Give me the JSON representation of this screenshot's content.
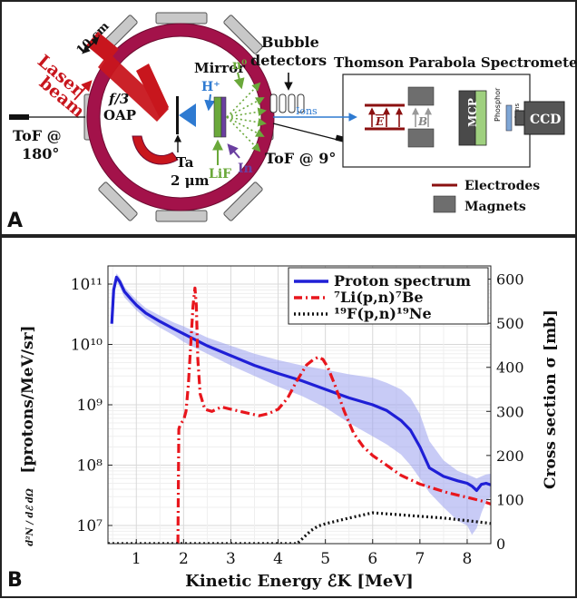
{
  "panel_a": {
    "panel_label": "A",
    "laser_label_1": "Laser",
    "laser_label_2": "beam",
    "beam_size": "10 cm",
    "oap_label_1": "f/3",
    "oap_label_2": "OAP",
    "mirror_label": "Mirror",
    "proton_label": "H⁺",
    "neutron_label": "n⁰",
    "target_label_1": "Ta",
    "target_label_2": "2 μm",
    "lif_label": "LiF",
    "indium_label": "In",
    "bubble_label_1": "Bubble",
    "bubble_label_2": "detectors",
    "tps_title": "Thomson Parabola Spectrometer",
    "ions_label": "Ions",
    "efield_label": "E",
    "bfield_label": "B",
    "mcp_label": "MCP",
    "phosphor_label": "Phosphor",
    "lens_label": "Lens",
    "ccd_label": "CCD",
    "tof180_label_1": "ToF @",
    "tof180_label_2": "180°",
    "tof9_label": "ToF @ 9°",
    "legend_electrodes": "Electrodes",
    "legend_magnets": "Magnets",
    "colors": {
      "chamber": "#a3124a",
      "laser": "#c8161d",
      "flange": "#c8c8c8",
      "magnet": "#6e6e6e",
      "electrode": "#8b1010",
      "mcp": "#4a4a4a",
      "phosphor": "#9fd07f",
      "lens": "#7fa7d6",
      "proton_arrow": "#2e7ad1",
      "neutron": "#6aa83a",
      "indium_arrow": "#6a3fa0"
    }
  },
  "panel_b": {
    "panel_label": "B",
    "chart_data": {
      "type": "line",
      "xlabel": "Kinetic Energy ℰK [MeV]",
      "ylabel_left": "[protons/MeV/sr]",
      "ylabel_left_prefix": "d²N / dℰ dΩ",
      "ylabel_right": "Cross section σ [mb]",
      "xlim": [
        0.4,
        8.5
      ],
      "x_ticks": [
        1,
        2,
        3,
        4,
        5,
        6,
        7,
        8
      ],
      "y_left_scale": "log",
      "y_left_lim": [
        5000000,
        200000000000
      ],
      "y_left_ticks": [
        "10⁷",
        "10⁸",
        "10⁹",
        "10¹⁰",
        "10¹¹"
      ],
      "y_left_tick_values": [
        10000000,
        100000000,
        1000000000,
        10000000000,
        100000000000
      ],
      "y_right_lim": [
        0,
        630
      ],
      "y_right_ticks": [
        0,
        100,
        200,
        300,
        400,
        500,
        600
      ],
      "grid": true,
      "legend_position": "top-right",
      "series": [
        {
          "name": "Proton spectrum",
          "axis": "left",
          "color": "#1f1fd6",
          "style": "solid",
          "x": [
            0.48,
            0.52,
            0.58,
            0.65,
            0.75,
            0.9,
            1.0,
            1.2,
            1.5,
            1.8,
            2.0,
            2.5,
            3.0,
            3.5,
            4.0,
            4.5,
            5.0,
            5.5,
            6.0,
            6.3,
            6.6,
            6.8,
            7.0,
            7.2,
            7.5,
            7.8,
            8.0,
            8.1,
            8.2,
            8.3,
            8.4,
            8.5
          ],
          "values": [
            22000000000,
            80000000000,
            130000000000,
            110000000000,
            75000000000,
            55000000000,
            45000000000,
            33000000000,
            24000000000,
            18000000000,
            15000000000,
            9500000000,
            6500000000,
            4500000000,
            3300000000,
            2500000000,
            1800000000,
            1300000000,
            1000000000,
            800000000,
            550000000,
            380000000,
            200000000,
            90000000,
            65000000,
            55000000,
            50000000,
            45000000,
            38000000,
            48000000,
            50000000,
            47000000
          ],
          "band_low": [
            18000000000,
            65000000000,
            110000000000,
            90000000000,
            60000000000,
            45000000000,
            37000000000,
            27000000000,
            19000000000,
            14000000000,
            11000000000,
            7000000000,
            4500000000,
            3000000000,
            2000000000,
            1400000000,
            900000000,
            500000000,
            300000000,
            220000000,
            150000000,
            100000000,
            60000000,
            35000000,
            20000000,
            12000000,
            10000000,
            7000000,
            9000000,
            16000000,
            25000000,
            30000000
          ],
          "band_high": [
            26000000000,
            95000000000,
            150000000000,
            130000000000,
            90000000000,
            66000000000,
            55000000000,
            40000000000,
            30000000000,
            23000000000,
            20000000000,
            13000000000,
            9500000000,
            7000000000,
            5500000000,
            4500000000,
            3800000000,
            3200000000,
            2800000000,
            2300000000,
            1800000000,
            1300000000,
            700000000,
            250000000,
            120000000,
            80000000,
            70000000,
            65000000,
            60000000,
            65000000,
            70000000,
            72000000
          ]
        },
        {
          "name": "⁷Li(p,n)⁷Be",
          "axis": "right",
          "color": "#e8161d",
          "style": "dashdot",
          "x": [
            1.88,
            1.9,
            1.93,
            1.96,
            2.0,
            2.05,
            2.1,
            2.15,
            2.2,
            2.24,
            2.27,
            2.3,
            2.35,
            2.45,
            2.6,
            2.8,
            3.0,
            3.2,
            3.4,
            3.6,
            3.8,
            4.0,
            4.2,
            4.4,
            4.6,
            4.75,
            4.85,
            4.95,
            5.05,
            5.2,
            5.4,
            5.6,
            5.8,
            6.0,
            6.2,
            6.4,
            6.6,
            6.8,
            7.0,
            7.3,
            7.6,
            8.0,
            8.3,
            8.5
          ],
          "values": [
            0,
            260,
            270,
            275,
            280,
            300,
            360,
            450,
            540,
            580,
            540,
            420,
            340,
            305,
            300,
            310,
            305,
            300,
            295,
            290,
            295,
            305,
            330,
            370,
            405,
            418,
            423,
            418,
            400,
            360,
            300,
            250,
            220,
            200,
            185,
            170,
            155,
            145,
            135,
            125,
            115,
            105,
            97,
            90
          ]
        },
        {
          "name": "¹⁹F(p,n)¹⁹Ne",
          "axis": "right",
          "color": "#111111",
          "style": "dotted",
          "x": [
            0.4,
            4.4,
            4.55,
            4.7,
            4.85,
            5.0,
            5.5,
            6.0,
            6.5,
            7.0,
            7.5,
            8.0,
            8.5
          ],
          "values": [
            0,
            0,
            15,
            30,
            40,
            45,
            58,
            70,
            66,
            62,
            58,
            52,
            46
          ]
        }
      ]
    }
  }
}
